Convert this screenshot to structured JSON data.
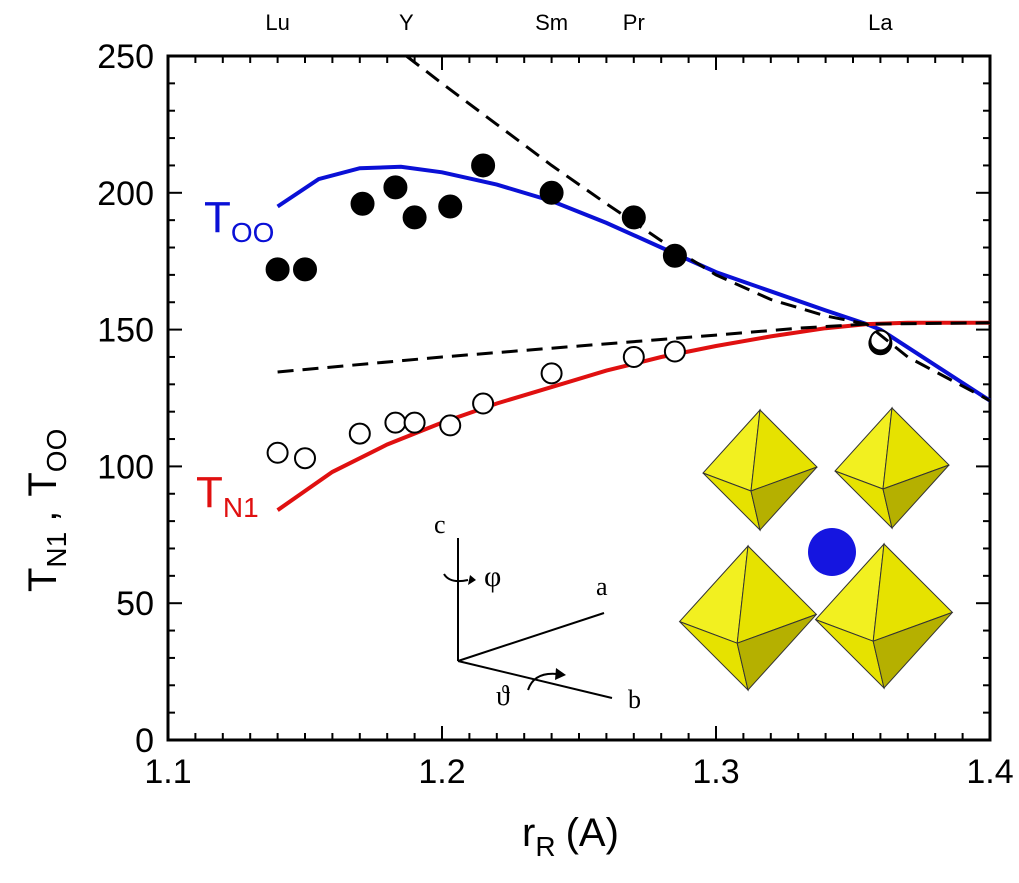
{
  "chart_data": {
    "type": "scatter",
    "xlabel": "r",
    "xlabel_sub": "R",
    "xlabel_unit": "(A)",
    "ylabel_1": "T",
    "ylabel_1_sub": "N1",
    "ylabel_sep": ",",
    "ylabel_2": "T",
    "ylabel_2_sub": "OO",
    "xlim": [
      1.1,
      1.4
    ],
    "ylim": [
      0,
      250
    ],
    "x_ticks": [
      1.1,
      1.2,
      1.3,
      1.4
    ],
    "x_tick_labels": [
      "1.1",
      "1.2",
      "1.3",
      "1.4"
    ],
    "y_ticks": [
      0,
      50,
      100,
      150,
      200,
      250
    ],
    "y_tick_labels": [
      "0",
      "50",
      "100",
      "150",
      "200",
      "250"
    ],
    "top_labels": [
      {
        "x": 1.14,
        "text": "Lu"
      },
      {
        "x": 1.187,
        "text": "Y"
      },
      {
        "x": 1.24,
        "text": "Sm"
      },
      {
        "x": 1.27,
        "text": "Pr"
      },
      {
        "x": 1.36,
        "text": "La"
      }
    ],
    "series": [
      {
        "name": "T_OO",
        "label": "T",
        "label_sub": "OO",
        "color": "#0a10d6",
        "marker": "filled-circle",
        "points": [
          [
            1.14,
            172
          ],
          [
            1.15,
            172
          ],
          [
            1.171,
            196
          ],
          [
            1.183,
            202
          ],
          [
            1.19,
            191
          ],
          [
            1.203,
            195
          ],
          [
            1.215,
            210
          ],
          [
            1.24,
            200
          ],
          [
            1.27,
            191
          ],
          [
            1.285,
            177
          ],
          [
            1.36,
            145
          ]
        ],
        "fit": [
          [
            1.14,
            195
          ],
          [
            1.155,
            205
          ],
          [
            1.17,
            209
          ],
          [
            1.185,
            209.5
          ],
          [
            1.2,
            207.5
          ],
          [
            1.22,
            203
          ],
          [
            1.24,
            197
          ],
          [
            1.26,
            189
          ],
          [
            1.28,
            180
          ],
          [
            1.3,
            171
          ],
          [
            1.32,
            164
          ],
          [
            1.34,
            157
          ],
          [
            1.355,
            152
          ],
          [
            1.36,
            150
          ],
          [
            1.38,
            137
          ],
          [
            1.4,
            124
          ]
        ]
      },
      {
        "name": "T_N1",
        "label": "T",
        "label_sub": "N1",
        "color": "#e01010",
        "marker": "open-circle",
        "points": [
          [
            1.14,
            105
          ],
          [
            1.15,
            103
          ],
          [
            1.17,
            112
          ],
          [
            1.183,
            116
          ],
          [
            1.19,
            116
          ],
          [
            1.203,
            115
          ],
          [
            1.215,
            123
          ],
          [
            1.24,
            134
          ],
          [
            1.27,
            140
          ],
          [
            1.285,
            142
          ],
          [
            1.36,
            146
          ]
        ],
        "fit": [
          [
            1.14,
            84
          ],
          [
            1.15,
            91
          ],
          [
            1.16,
            98
          ],
          [
            1.18,
            108
          ],
          [
            1.2,
            116
          ],
          [
            1.22,
            123
          ],
          [
            1.24,
            129
          ],
          [
            1.26,
            135
          ],
          [
            1.28,
            140
          ],
          [
            1.3,
            144
          ],
          [
            1.32,
            147.5
          ],
          [
            1.34,
            150.5
          ],
          [
            1.355,
            152
          ],
          [
            1.37,
            152.5
          ],
          [
            1.4,
            152.5
          ]
        ]
      },
      {
        "name": "dashed_upper",
        "color": "#000000",
        "style": "dashed",
        "fit": [
          [
            1.187,
            250
          ],
          [
            1.2,
            240
          ],
          [
            1.22,
            225
          ],
          [
            1.24,
            210
          ],
          [
            1.26,
            196
          ],
          [
            1.28,
            182.5
          ],
          [
            1.3,
            170
          ],
          [
            1.32,
            161
          ],
          [
            1.34,
            155
          ],
          [
            1.355,
            152
          ],
          [
            1.37,
            140
          ],
          [
            1.4,
            124
          ]
        ]
      },
      {
        "name": "dashed_lower",
        "color": "#000000",
        "style": "dashed",
        "fit": [
          [
            1.14,
            134.5
          ],
          [
            1.2,
            140
          ],
          [
            1.25,
            144
          ],
          [
            1.3,
            148
          ],
          [
            1.33,
            150.5
          ],
          [
            1.355,
            152
          ],
          [
            1.4,
            152.5
          ]
        ]
      }
    ],
    "inset_axes": {
      "c": "c",
      "a": "a",
      "b": "b",
      "phi": "φ",
      "theta": "ϑ"
    },
    "inset_colors": {
      "octahedron_light": "#f2f020",
      "octahedron_mid": "#e6e200",
      "octahedron_dark": "#b5b000",
      "atom": "#1515e0"
    }
  }
}
